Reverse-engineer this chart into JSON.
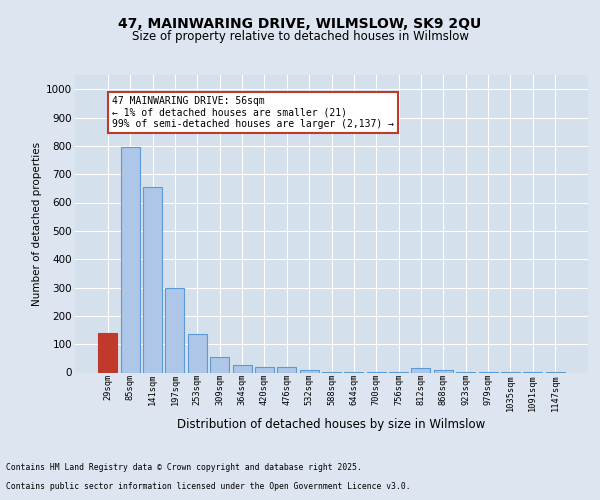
{
  "title1": "47, MAINWARING DRIVE, WILMSLOW, SK9 2QU",
  "title2": "Size of property relative to detached houses in Wilmslow",
  "xlabel": "Distribution of detached houses by size in Wilmslow",
  "ylabel": "Number of detached properties",
  "bar_labels": [
    "29sqm",
    "85sqm",
    "141sqm",
    "197sqm",
    "253sqm",
    "309sqm",
    "364sqm",
    "420sqm",
    "476sqm",
    "532sqm",
    "588sqm",
    "644sqm",
    "700sqm",
    "756sqm",
    "812sqm",
    "868sqm",
    "923sqm",
    "979sqm",
    "1035sqm",
    "1091sqm",
    "1147sqm"
  ],
  "bar_values": [
    140,
    795,
    655,
    300,
    135,
    55,
    28,
    20,
    18,
    10,
    2,
    1,
    1,
    1,
    15,
    10,
    1,
    1,
    1,
    1,
    1
  ],
  "bar_color": "#aec6e8",
  "bar_edge_color": "#5b9bd5",
  "highlight_color": "#c0392b",
  "highlight_index": 0,
  "annotation_text": "47 MAINWARING DRIVE: 56sqm\n← 1% of detached houses are smaller (21)\n99% of semi-detached houses are larger (2,137) →",
  "annotation_box_color": "white",
  "annotation_box_edge_color": "#c0392b",
  "ylim": [
    0,
    1050
  ],
  "yticks": [
    0,
    100,
    200,
    300,
    400,
    500,
    600,
    700,
    800,
    900,
    1000
  ],
  "footer1": "Contains HM Land Registry data © Crown copyright and database right 2025.",
  "footer2": "Contains public sector information licensed under the Open Government Licence v3.0.",
  "bg_color": "#dde5f0",
  "plot_bg_color": "#d5e0ed"
}
